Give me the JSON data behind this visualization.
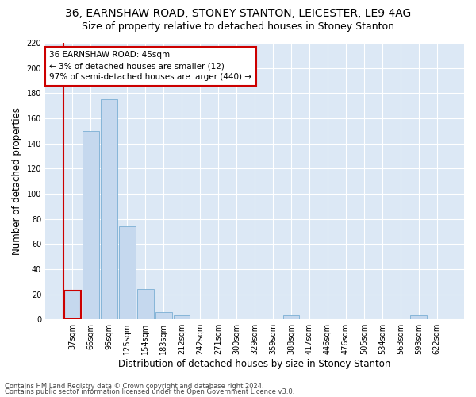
{
  "title1": "36, EARNSHAW ROAD, STONEY STANTON, LEICESTER, LE9 4AG",
  "title2": "Size of property relative to detached houses in Stoney Stanton",
  "xlabel": "Distribution of detached houses by size in Stoney Stanton",
  "ylabel": "Number of detached properties",
  "categories": [
    "37sqm",
    "66sqm",
    "95sqm",
    "125sqm",
    "154sqm",
    "183sqm",
    "212sqm",
    "242sqm",
    "271sqm",
    "300sqm",
    "329sqm",
    "359sqm",
    "388sqm",
    "417sqm",
    "446sqm",
    "476sqm",
    "505sqm",
    "534sqm",
    "563sqm",
    "593sqm",
    "622sqm"
  ],
  "values": [
    23,
    150,
    175,
    74,
    24,
    6,
    3,
    0,
    0,
    0,
    0,
    0,
    3,
    0,
    0,
    0,
    0,
    0,
    0,
    3,
    0
  ],
  "bar_color": "#c5d8ee",
  "bar_edge_color": "#7bafd4",
  "highlight_color": "#cc0000",
  "annotation_text": "36 EARNSHAW ROAD: 45sqm\n← 3% of detached houses are smaller (12)\n97% of semi-detached houses are larger (440) →",
  "annotation_box_color": "#ffffff",
  "annotation_box_edge": "#cc0000",
  "background_color": "#dce8f5",
  "fig_background": "#ffffff",
  "grid_color": "#ffffff",
  "ylim": [
    0,
    220
  ],
  "yticks": [
    0,
    20,
    40,
    60,
    80,
    100,
    120,
    140,
    160,
    180,
    200,
    220
  ],
  "footer1": "Contains HM Land Registry data © Crown copyright and database right 2024.",
  "footer2": "Contains public sector information licensed under the Open Government Licence v3.0.",
  "title1_fontsize": 10,
  "title2_fontsize": 9,
  "tick_fontsize": 7,
  "ylabel_fontsize": 8.5,
  "xlabel_fontsize": 8.5,
  "footer_fontsize": 6,
  "annot_fontsize": 7.5
}
